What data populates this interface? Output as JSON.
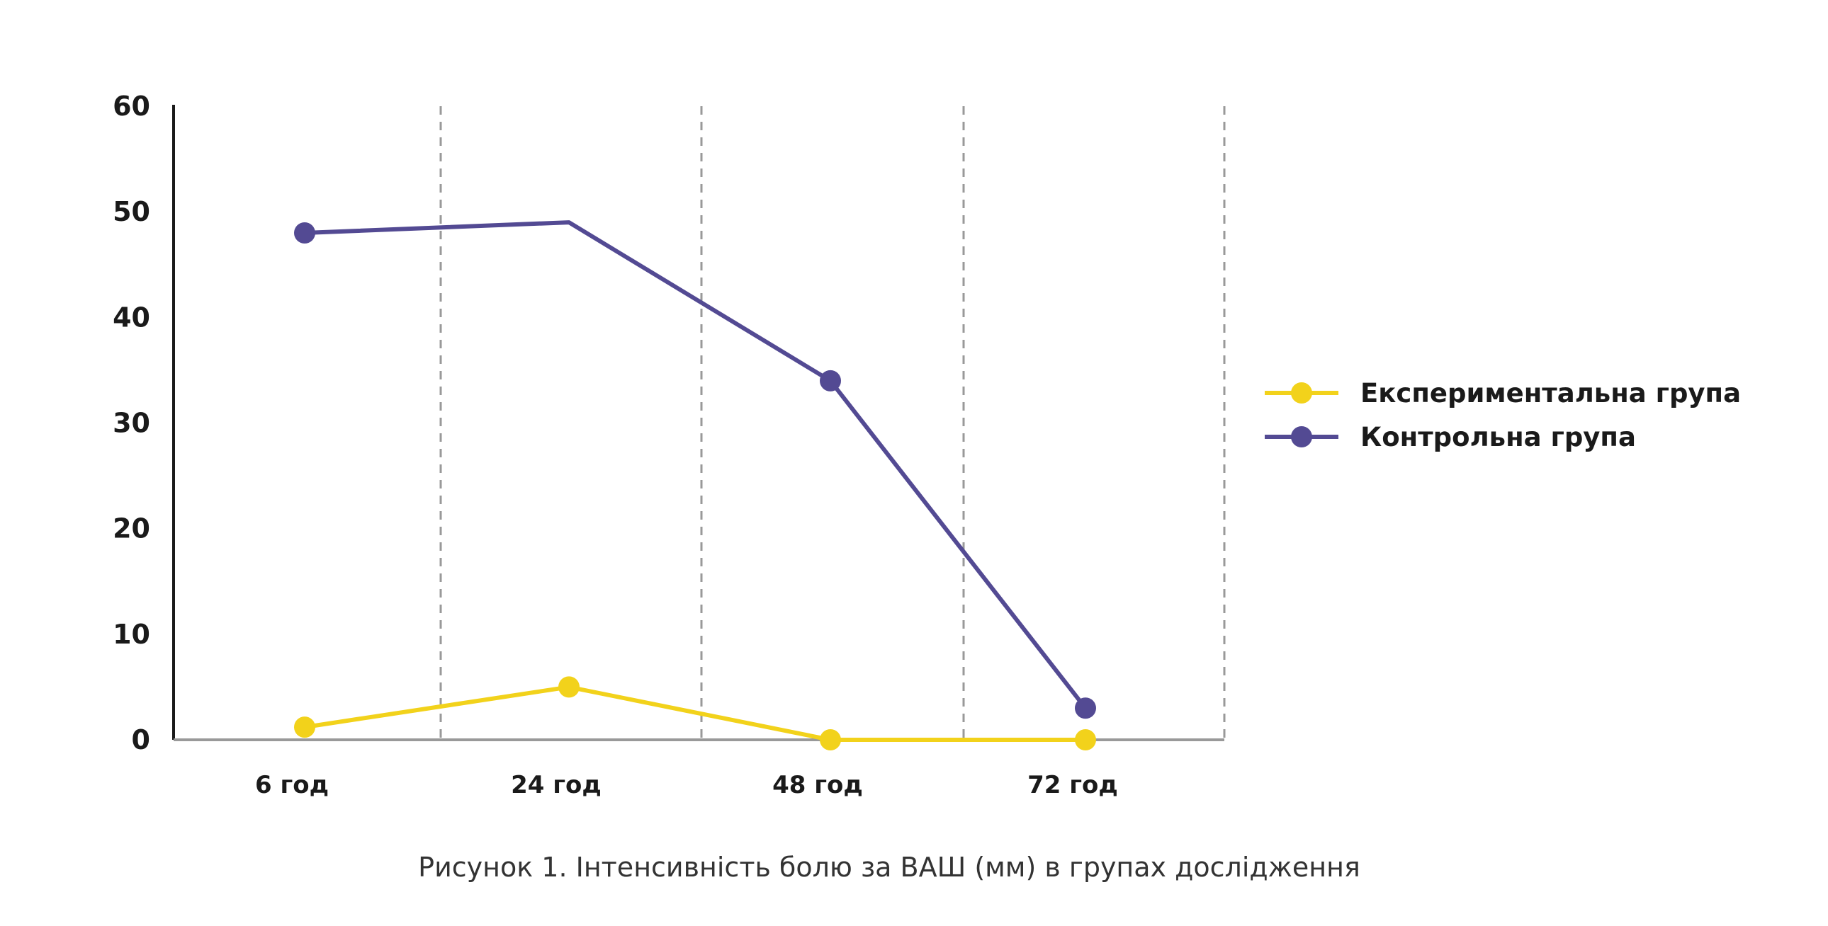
{
  "chart_data": {
    "type": "line",
    "categories": [
      "6 год",
      "24 год",
      "48 год",
      "72 год"
    ],
    "y_ticks": [
      "0",
      "10",
      "20",
      "30",
      "40",
      "50",
      "60"
    ],
    "ylim": [
      0,
      60
    ],
    "grid": "vertical dashed lines",
    "legend_position": "right",
    "series": [
      {
        "name": "Експериментальна група",
        "color": "#F2D21B",
        "values": [
          1.2,
          5,
          0,
          0
        ]
      },
      {
        "name": "Контрольна група",
        "color": "#534A93",
        "values": [
          48,
          49,
          34,
          3
        ],
        "markers": [
          true,
          false,
          true,
          true
        ]
      }
    ],
    "caption": "Рисунок 1. Інтенсивність болю за ВАШ (мм) в групах дослідження"
  }
}
